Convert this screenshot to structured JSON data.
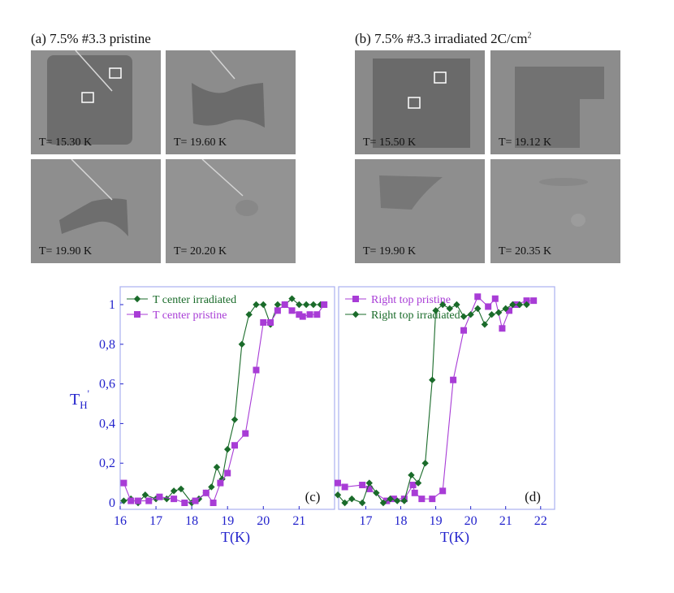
{
  "panels": {
    "a": {
      "title": "(a) 7.5% #3.3 pristine",
      "images": [
        {
          "temp": "T= 15.30 K"
        },
        {
          "temp": "T= 19.60 K"
        },
        {
          "temp": "T= 19.90 K"
        },
        {
          "temp": "T= 20.20 K"
        }
      ]
    },
    "b": {
      "title": "(b) 7.5% #3.3 irradiated 2C/cm",
      "title_sup": "2",
      "images": [
        {
          "temp": "T= 15.50 K"
        },
        {
          "temp": "T= 19.12 K"
        },
        {
          "temp": "T= 19.90 K"
        },
        {
          "temp": "T= 20.35 K"
        }
      ]
    }
  },
  "colors": {
    "irradiated": "#1a6b2a",
    "pristine": "#a83cd6",
    "axis": "#2222cc",
    "frame": "#aab0f0"
  },
  "chart_data": [
    {
      "id": "c",
      "type": "line",
      "panel_label": "(c)",
      "xlabel": "T(K)",
      "ylabel": "T_H'",
      "xlim": [
        16,
        21.9
      ],
      "ylim": [
        0,
        1.1
      ],
      "xticks": [
        "16",
        "17",
        "18",
        "19",
        "20",
        "21"
      ],
      "yticks": [
        "0",
        "0,2",
        "0,4",
        "0,6",
        "0,8",
        "1"
      ],
      "legend_position": "top-left",
      "series": [
        {
          "name": "T center irradiated",
          "marker": "diamond",
          "color": "#1a6b2a",
          "x": [
            16.1,
            16.3,
            16.5,
            16.7,
            17.0,
            17.3,
            17.5,
            17.7,
            18.0,
            18.2,
            18.4,
            18.55,
            18.7,
            18.85,
            19.0,
            19.2,
            19.4,
            19.6,
            19.8,
            20.0,
            20.2,
            20.4,
            20.6,
            20.8,
            21.0,
            21.2,
            21.4,
            21.6
          ],
          "y": [
            0.01,
            0.02,
            0.0,
            0.04,
            0.02,
            0.02,
            0.06,
            0.07,
            0.0,
            0.02,
            0.05,
            0.08,
            0.18,
            0.12,
            0.27,
            0.42,
            0.8,
            0.95,
            1.0,
            1.0,
            0.9,
            1.0,
            1.0,
            1.03,
            1.0,
            1.0,
            1.0,
            1.0
          ]
        },
        {
          "name": "T center pristine",
          "marker": "square",
          "color": "#a83cd6",
          "x": [
            16.1,
            16.3,
            16.5,
            16.8,
            17.1,
            17.5,
            17.8,
            18.1,
            18.4,
            18.6,
            18.8,
            19.0,
            19.2,
            19.5,
            19.8,
            20.0,
            20.2,
            20.4,
            20.6,
            20.8,
            21.0,
            21.1,
            21.3,
            21.5,
            21.7
          ],
          "y": [
            0.1,
            0.01,
            0.01,
            0.01,
            0.03,
            0.02,
            0.0,
            0.01,
            0.05,
            0.0,
            0.1,
            0.15,
            0.29,
            0.35,
            0.67,
            0.91,
            0.91,
            0.97,
            1.0,
            0.97,
            0.95,
            0.94,
            0.95,
            0.95,
            1.0
          ]
        }
      ]
    },
    {
      "id": "d",
      "type": "line",
      "panel_label": "(d)",
      "xlabel": "T(K)",
      "ylabel": "",
      "xlim": [
        16.2,
        22.4
      ],
      "ylim": [
        0,
        1.1
      ],
      "xticks": [
        "17",
        "18",
        "19",
        "20",
        "21",
        "22"
      ],
      "legend_position": "top-left",
      "series": [
        {
          "name": "Right top pristine",
          "marker": "square",
          "color": "#a83cd6",
          "x": [
            16.2,
            16.4,
            16.9,
            17.1,
            17.6,
            17.8,
            18.1,
            18.35,
            18.4,
            18.6,
            18.9,
            19.2,
            19.5,
            19.8,
            20.2,
            20.5,
            20.7,
            20.9,
            21.1,
            21.3,
            21.6,
            21.8
          ],
          "y": [
            0.1,
            0.08,
            0.09,
            0.07,
            0.01,
            0.02,
            0.02,
            0.09,
            0.05,
            0.02,
            0.02,
            0.06,
            0.62,
            0.87,
            1.04,
            0.99,
            1.03,
            0.88,
            0.97,
            1.0,
            1.02,
            1.02
          ]
        },
        {
          "name": "Right top irradiated",
          "marker": "diamond",
          "color": "#1a6b2a",
          "x": [
            16.2,
            16.4,
            16.6,
            16.9,
            17.1,
            17.3,
            17.5,
            17.7,
            17.9,
            18.1,
            18.3,
            18.5,
            18.7,
            18.9,
            19.0,
            19.2,
            19.4,
            19.6,
            19.8,
            20.0,
            20.2,
            20.4,
            20.6,
            20.8,
            21.0,
            21.2,
            21.4,
            21.6
          ],
          "y": [
            0.04,
            0.0,
            0.02,
            0.0,
            0.1,
            0.05,
            0.0,
            0.02,
            0.01,
            0.01,
            0.14,
            0.1,
            0.2,
            0.62,
            0.97,
            1.0,
            0.98,
            1.0,
            0.94,
            0.95,
            0.98,
            0.9,
            0.95,
            0.96,
            0.98,
            1.0,
            1.0,
            1.0
          ]
        }
      ]
    }
  ]
}
